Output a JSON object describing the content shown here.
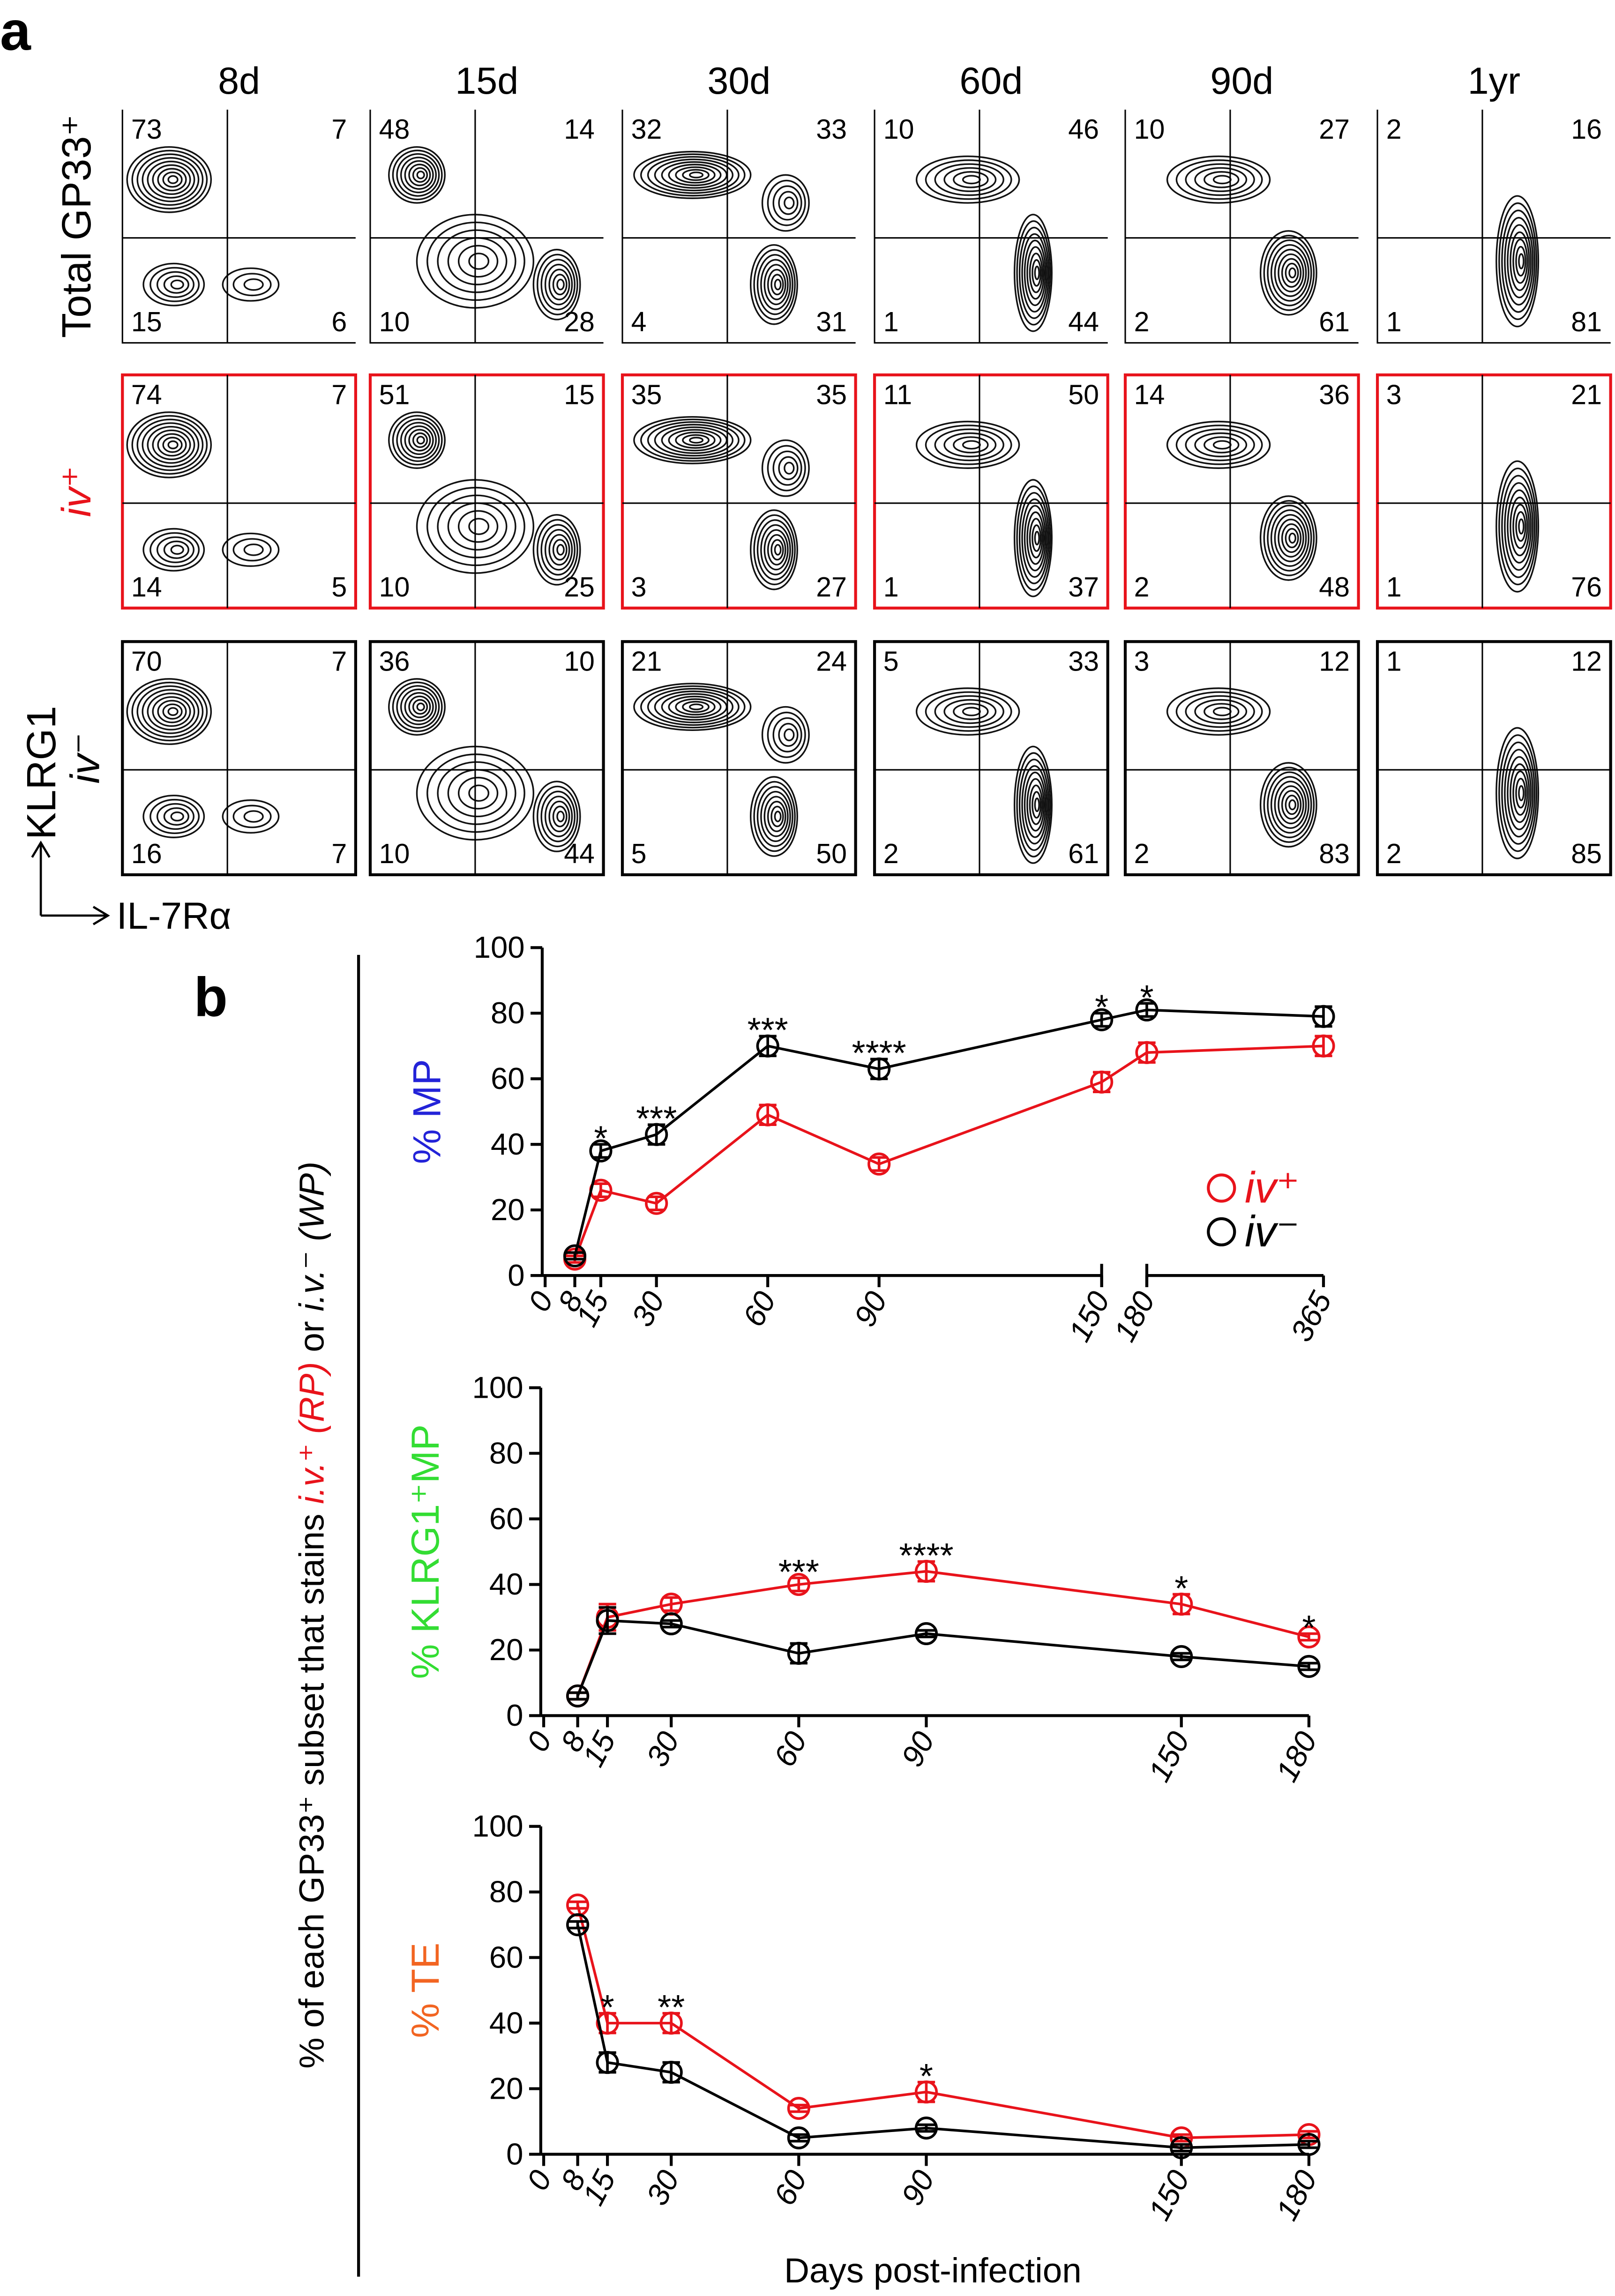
{
  "panel_a": {
    "label": "a",
    "columns": [
      "8d",
      "15d",
      "30d",
      "60d",
      "90d",
      "1yr"
    ],
    "y_axis_label": "KLRG1",
    "x_axis_label": "IL-7Rα",
    "rows": [
      {
        "label": "Total GP33⁺",
        "color": "#000000",
        "italic": false,
        "framed": false,
        "quadrants": [
          [
            73,
            7,
            15,
            6
          ],
          [
            48,
            14,
            10,
            28
          ],
          [
            32,
            33,
            4,
            31
          ],
          [
            10,
            46,
            1,
            44
          ],
          [
            10,
            27,
            2,
            61
          ],
          [
            2,
            16,
            1,
            81
          ]
        ]
      },
      {
        "label": "iv⁺",
        "color": "#e8131b",
        "italic": true,
        "framed": true,
        "quadrants": [
          [
            74,
            7,
            14,
            5
          ],
          [
            51,
            15,
            10,
            25
          ],
          [
            35,
            35,
            3,
            27
          ],
          [
            11,
            50,
            1,
            37
          ],
          [
            14,
            36,
            2,
            48
          ],
          [
            3,
            21,
            1,
            76
          ]
        ]
      },
      {
        "label": "iv⁻",
        "color": "#000000",
        "italic": true,
        "framed": true,
        "quadrants": [
          [
            70,
            7,
            16,
            7
          ],
          [
            36,
            10,
            10,
            44
          ],
          [
            21,
            24,
            5,
            50
          ],
          [
            5,
            33,
            2,
            61
          ],
          [
            3,
            12,
            2,
            83
          ],
          [
            1,
            12,
            2,
            85
          ]
        ]
      }
    ]
  },
  "panel_b": {
    "label": "b",
    "xlabel": "Days post-infection",
    "ylabel_parts": [
      {
        "text": "% of each GP33⁺ subset that stains ",
        "color": "#000000",
        "italic": false
      },
      {
        "text": "i.v.⁺ (RP)",
        "color": "#e8131b",
        "italic": true
      },
      {
        "text": "  or ",
        "color": "#000000",
        "italic": false
      },
      {
        "text": "i.v.⁻ (WP)",
        "color": "#000000",
        "italic": true
      }
    ]
  },
  "chart_data": [
    {
      "type": "line",
      "ylabel": "% MP",
      "ylabel_color": "#2323d8",
      "x": [
        8,
        15,
        30,
        60,
        90,
        150,
        180,
        365
      ],
      "xlim": [
        0,
        365
      ],
      "x_break": [
        150,
        180
      ],
      "xticks": [
        0,
        8,
        15,
        30,
        60,
        90,
        150,
        180,
        365
      ],
      "ylim": [
        0,
        100
      ],
      "yticks": [
        0,
        20,
        40,
        60,
        80,
        100
      ],
      "series": [
        {
          "name": "iv⁺",
          "color": "#e8131b",
          "values": [
            5,
            26,
            22,
            49,
            34,
            59,
            68,
            70
          ],
          "errors": [
            1,
            2,
            2,
            3,
            2,
            3,
            3,
            3
          ]
        },
        {
          "name": "iv⁻",
          "color": "#000000",
          "values": [
            6,
            38,
            43,
            70,
            63,
            78,
            81,
            79
          ],
          "errors": [
            1,
            2,
            3,
            3,
            3,
            2,
            2,
            3
          ]
        }
      ],
      "annotations": [
        {
          "x": 15,
          "text": "*"
        },
        {
          "x": 30,
          "text": "***"
        },
        {
          "x": 60,
          "text": "***"
        },
        {
          "x": 90,
          "text": "****"
        },
        {
          "x": 150,
          "text": "*"
        },
        {
          "x": 180,
          "text": "*"
        }
      ],
      "legend": "lower right"
    },
    {
      "type": "line",
      "ylabel": "% KLRG1⁺MP",
      "ylabel_color": "#33dd33",
      "x": [
        8,
        15,
        30,
        60,
        90,
        150,
        180
      ],
      "xlim": [
        0,
        180
      ],
      "xticks": [
        0,
        8,
        15,
        30,
        60,
        90,
        150,
        180
      ],
      "ylim": [
        0,
        100
      ],
      "yticks": [
        0,
        20,
        40,
        60,
        80,
        100
      ],
      "series": [
        {
          "name": "iv⁺",
          "color": "#e8131b",
          "values": [
            6,
            30,
            34,
            40,
            44,
            34,
            24
          ],
          "errors": [
            1,
            4,
            2,
            2,
            3,
            3,
            1
          ]
        },
        {
          "name": "iv⁻",
          "color": "#000000",
          "values": [
            6,
            29,
            28,
            19,
            25,
            18,
            15
          ],
          "errors": [
            1,
            4,
            1,
            3,
            1,
            1,
            1
          ]
        }
      ],
      "annotations": [
        {
          "x": 60,
          "text": "***"
        },
        {
          "x": 90,
          "text": "****"
        },
        {
          "x": 150,
          "text": "*"
        },
        {
          "x": 180,
          "text": "*"
        }
      ]
    },
    {
      "type": "line",
      "ylabel": "% TE",
      "ylabel_color": "#f26522",
      "x": [
        8,
        15,
        30,
        60,
        90,
        150,
        180
      ],
      "xlim": [
        0,
        180
      ],
      "xticks": [
        0,
        8,
        15,
        30,
        60,
        90,
        150,
        180
      ],
      "ylim": [
        0,
        100
      ],
      "yticks": [
        0,
        20,
        40,
        60,
        80,
        100
      ],
      "series": [
        {
          "name": "iv⁺",
          "color": "#e8131b",
          "values": [
            76,
            40,
            40,
            14,
            19,
            5,
            6
          ],
          "errors": [
            1,
            3,
            3,
            1,
            3,
            1,
            1
          ]
        },
        {
          "name": "iv⁻",
          "color": "#000000",
          "values": [
            70,
            28,
            25,
            5,
            8,
            2,
            3
          ],
          "errors": [
            1,
            3,
            3,
            1,
            1,
            1,
            1
          ]
        }
      ],
      "annotations": [
        {
          "x": 15,
          "text": "*"
        },
        {
          "x": 30,
          "text": "**"
        },
        {
          "x": 90,
          "text": "*"
        }
      ]
    }
  ]
}
